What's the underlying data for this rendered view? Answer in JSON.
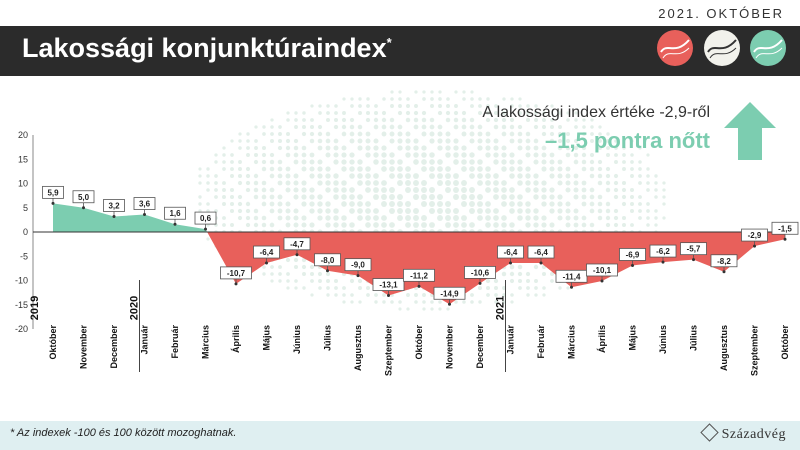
{
  "header": {
    "date": "2021. OKTÓBER",
    "title": "Lakossági konjunktúraindex",
    "title_mark": "*"
  },
  "headline": {
    "line1": "A lakossági index értéke -2,9-ről",
    "line2": "–1,5 pontra nőtt",
    "arrow_icon": "up-arrow-icon",
    "arrow_color": "#7ccdb0"
  },
  "footer": {
    "note": "* Az indexek -100 és 100 között mozoghatnak.",
    "brand": "Századvég"
  },
  "colors": {
    "positive": "#7ccdb0",
    "negative": "#e8605b",
    "titlebar": "#2b2b2b",
    "footer": "#dfeff1"
  },
  "chart_data": {
    "type": "area",
    "ylim": [
      -20,
      20
    ],
    "yticks": [
      20,
      15,
      10,
      5,
      0,
      -5,
      -10,
      -15,
      -20
    ],
    "grid": false,
    "year_markers": [
      {
        "label": "2019",
        "index": 0
      },
      {
        "label": "2020",
        "index": 3
      },
      {
        "label": "2021",
        "index": 15
      }
    ],
    "categories": [
      "Október",
      "November",
      "December",
      "Január",
      "Február",
      "Március",
      "Április",
      "Május",
      "Június",
      "Július",
      "Augusztus",
      "Szeptember",
      "Október",
      "November",
      "December",
      "Január",
      "Február",
      "Március",
      "Április",
      "Május",
      "Június",
      "Július",
      "Augusztus",
      "Szeptember",
      "Október"
    ],
    "values": [
      5.9,
      5.0,
      3.2,
      3.6,
      1.6,
      0.6,
      -10.7,
      -6.4,
      -4.7,
      -8.0,
      -9.0,
      -13.1,
      -11.2,
      -14.9,
      -10.6,
      -6.4,
      -6.4,
      -11.4,
      -10.1,
      -6.9,
      -6.2,
      -5.7,
      -8.2,
      -2.9,
      -1.5
    ],
    "labels": [
      "5,9",
      "5,0",
      "3,2",
      "3,6",
      "1,6",
      "0,6",
      "-10,7",
      "-6,4",
      "-4,7",
      "-8,0",
      "-9,0",
      "-13,1",
      "-11,2",
      "-14,9",
      "-10,6",
      "-6,4",
      "-6,4",
      "-11,4",
      "-10,1",
      "-6,9",
      "-6,2",
      "-5,7",
      "-8,2",
      "-2,9",
      "-1,5"
    ]
  }
}
